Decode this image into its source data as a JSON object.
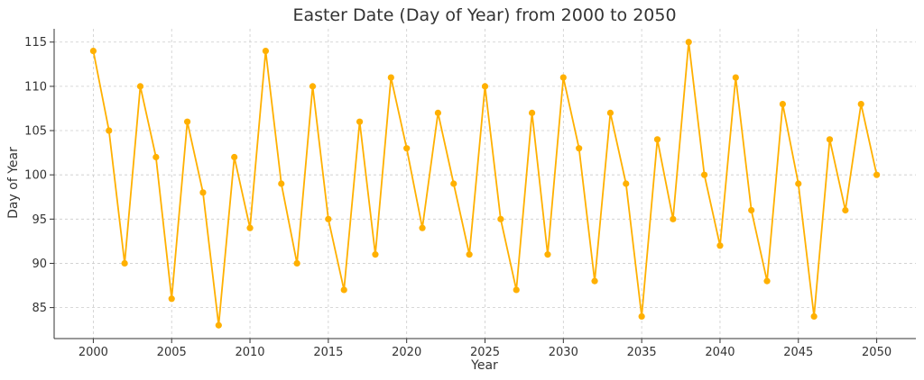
{
  "chart_data": {
    "type": "line",
    "title": "Easter Date (Day of Year) from 2000 to 2050",
    "xlabel": "Year",
    "ylabel": "Day of Year",
    "xlim": [
      1997.5,
      2052.5
    ],
    "ylim": [
      81.5,
      116.5
    ],
    "x_ticks": [
      2000,
      2005,
      2010,
      2015,
      2020,
      2025,
      2030,
      2035,
      2040,
      2045,
      2050
    ],
    "y_ticks": [
      85,
      90,
      95,
      100,
      105,
      110,
      115
    ],
    "grid": true,
    "color": "#FFB000",
    "series": [
      {
        "x": [
          2000,
          2001,
          2002,
          2003,
          2004,
          2005,
          2006,
          2007,
          2008,
          2009,
          2010,
          2011,
          2012,
          2013,
          2014,
          2015,
          2016,
          2017,
          2018,
          2019,
          2020,
          2021,
          2022,
          2023,
          2024,
          2025,
          2026,
          2027,
          2028,
          2029,
          2030,
          2031,
          2032,
          2033,
          2034,
          2035,
          2036,
          2037,
          2038,
          2039,
          2040,
          2041,
          2042,
          2043,
          2044,
          2045,
          2046,
          2047,
          2048,
          2049,
          2050
        ],
        "values": [
          114,
          105,
          90,
          110,
          102,
          86,
          106,
          98,
          83,
          102,
          94,
          114,
          99,
          90,
          110,
          95,
          87,
          106,
          91,
          111,
          103,
          94,
          107,
          99,
          91,
          110,
          95,
          87,
          107,
          91,
          111,
          103,
          88,
          107,
          99,
          84,
          104,
          95,
          115,
          100,
          92,
          111,
          96,
          88,
          108,
          99,
          84,
          104,
          96,
          108,
          100
        ]
      }
    ]
  }
}
